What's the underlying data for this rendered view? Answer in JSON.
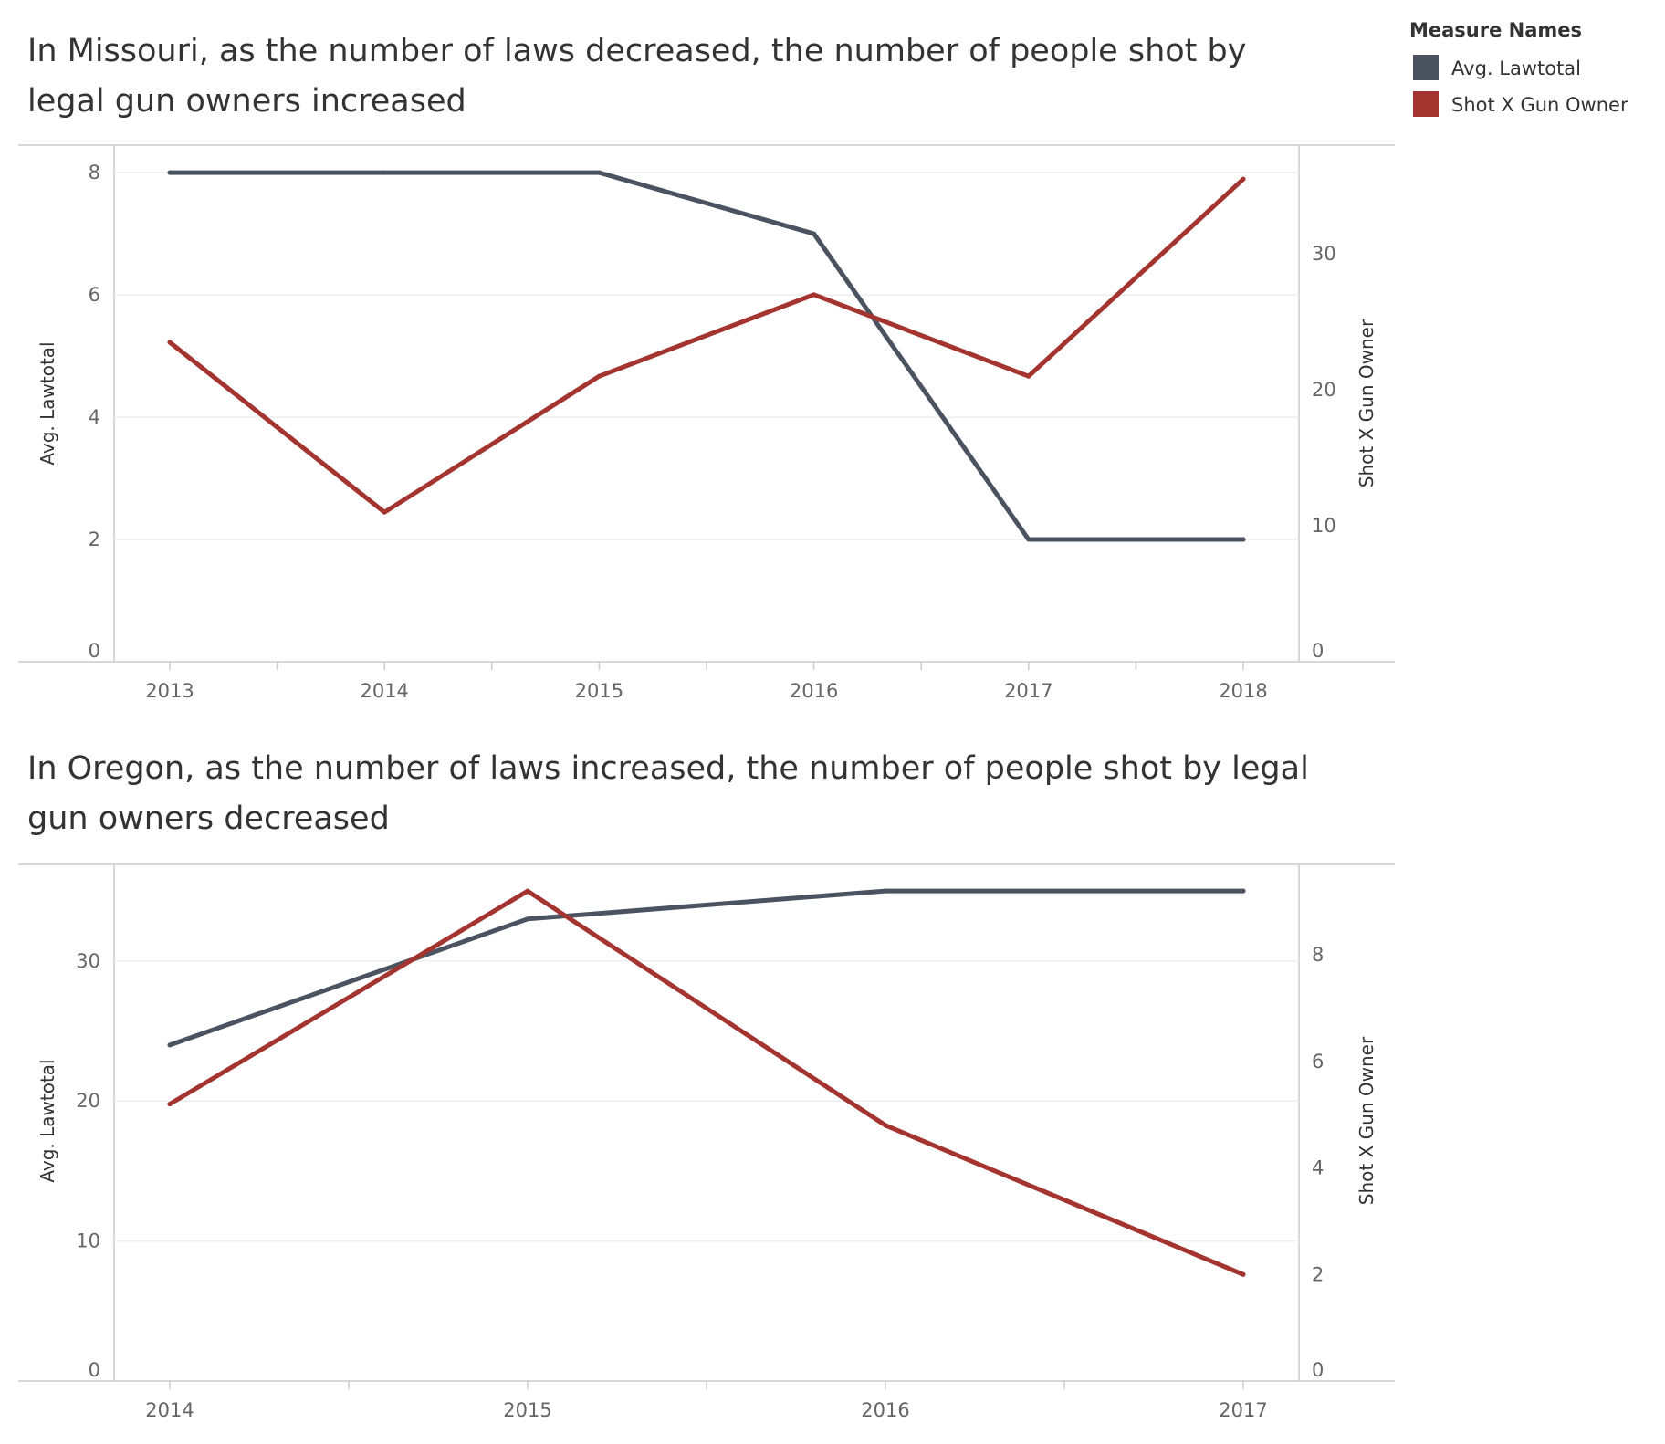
{
  "legend": {
    "title": "Measure Names",
    "items": [
      {
        "label": "Avg. Lawtotal",
        "color": "#4a535f"
      },
      {
        "label": "Shot X Gun Owner",
        "color": "#a3342f"
      }
    ]
  },
  "colors": {
    "lawtotal": "#4a535f",
    "shot": "#a3342f",
    "grid": "#eeeeee",
    "axis": "#cccccc"
  },
  "chart_data": [
    {
      "type": "line",
      "title": "In Missouri, as the number of laws decreased, the number of people shot by legal gun owners increased",
      "title_lines": [
        "In Missouri, as the number of laws decreased, the number of people shot by",
        "legal gun owners increased"
      ],
      "x": [
        "2013",
        "2014",
        "2015",
        "2016",
        "2017",
        "2018"
      ],
      "ylabel_left": "Avg. Lawtotal",
      "ylabel_right": "Shot X Gun Owner",
      "ylim_left": [
        0,
        8.45
      ],
      "ylim_right": [
        0,
        38
      ],
      "yticks_left": [
        0,
        2,
        4,
        6,
        8
      ],
      "yticks_right": [
        0,
        10,
        20,
        30
      ],
      "grid": true,
      "series": [
        {
          "name": "Avg. Lawtotal",
          "axis": "left",
          "values": [
            8,
            8,
            8,
            7,
            2,
            2
          ]
        },
        {
          "name": "Shot X Gun Owner",
          "axis": "right",
          "values": [
            23.5,
            11,
            21,
            27,
            21,
            35.5
          ]
        }
      ]
    },
    {
      "type": "line",
      "title": "In Oregon, as the number of laws increased, the number of people shot by legal gun owners decreased",
      "title_lines": [
        "In Oregon, as the number of laws increased, the number of people shot by legal",
        "gun owners decreased"
      ],
      "x": [
        "2014",
        "2015",
        "2016",
        "2017"
      ],
      "ylabel_left": "Avg. Lawtotal",
      "ylabel_right": "Shot X Gun Owner",
      "ylim_left": [
        0,
        36.9
      ],
      "ylim_right": [
        0,
        9.7
      ],
      "yticks_left": [
        0,
        10,
        20,
        30
      ],
      "yticks_right": [
        0,
        2,
        4,
        6,
        8
      ],
      "grid": true,
      "series": [
        {
          "name": "Avg. Lawtotal",
          "axis": "left",
          "values": [
            24,
            33,
            35,
            35
          ]
        },
        {
          "name": "Shot X Gun Owner",
          "axis": "right",
          "values": [
            5.2,
            9.2,
            4.8,
            2
          ]
        }
      ]
    }
  ]
}
